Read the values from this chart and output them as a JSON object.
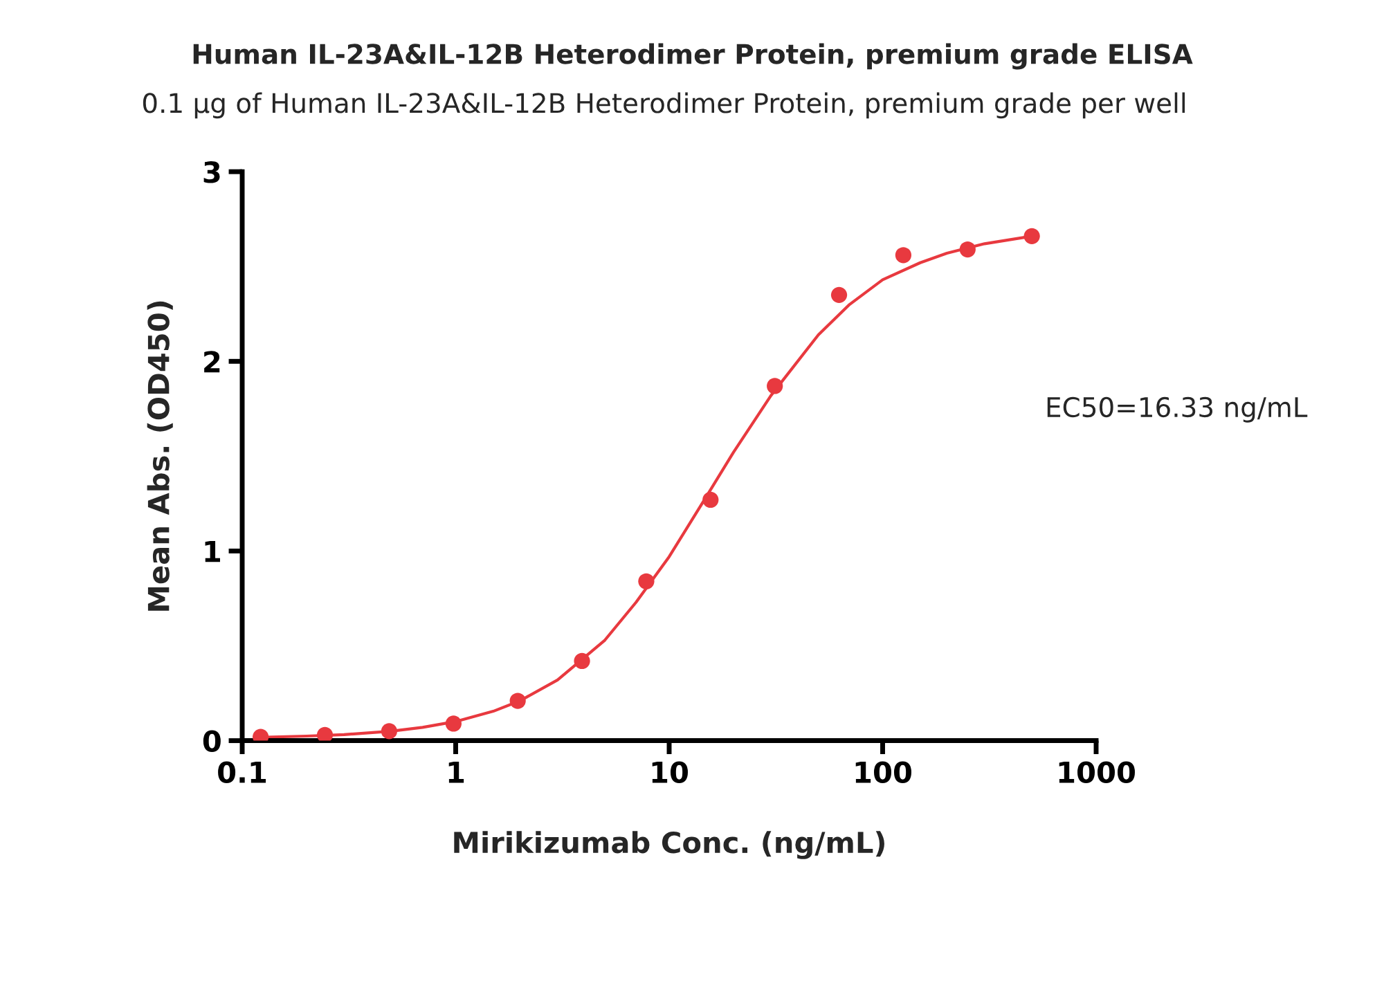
{
  "chart_data": {
    "type": "scatter",
    "title": "Human IL-23A&IL-12B Heterodimer Protein, premium grade ELISA",
    "subtitle": "0.1 μg of Human IL-23A&IL-12B Heterodimer Protein, premium grade per well",
    "xlabel": "Mirikizumab Conc. (ng/mL)",
    "ylabel": "Mean Abs. (OD450)",
    "annotations": [
      "EC50=16.33 ng/mL"
    ],
    "log": "x",
    "grid": false,
    "legend": false,
    "marker": "circle",
    "xlim": [
      0.1,
      1000
    ],
    "xticks": [
      0.1,
      1,
      10,
      100,
      1000
    ],
    "ylim": [
      0,
      3
    ],
    "yticks": [
      0,
      1,
      2,
      3
    ],
    "series": [
      {
        "color": "#e8393f",
        "x": [
          0.122,
          0.244,
          0.488,
          0.977,
          1.953,
          3.906,
          7.8125,
          15.625,
          31.25,
          62.5,
          125,
          250,
          500
        ],
        "values": [
          0.02,
          0.03,
          0.05,
          0.09,
          0.21,
          0.42,
          0.84,
          1.27,
          1.87,
          2.35,
          2.56,
          2.59,
          2.66
        ]
      },
      {
        "type": "line",
        "color": "#e8393f",
        "marker": "none",
        "line_style": "solid",
        "x": [
          0.12,
          0.2,
          0.3,
          0.5,
          0.7,
          1,
          1.5,
          2,
          3,
          5,
          7,
          10,
          15,
          20,
          30,
          50,
          70,
          100,
          150,
          200,
          300,
          500
        ],
        "values": [
          0.017,
          0.024,
          0.032,
          0.05,
          0.07,
          0.101,
          0.155,
          0.21,
          0.32,
          0.53,
          0.73,
          0.97,
          1.29,
          1.52,
          1.82,
          2.14,
          2.3,
          2.43,
          2.52,
          2.57,
          2.62,
          2.66
        ]
      }
    ]
  }
}
